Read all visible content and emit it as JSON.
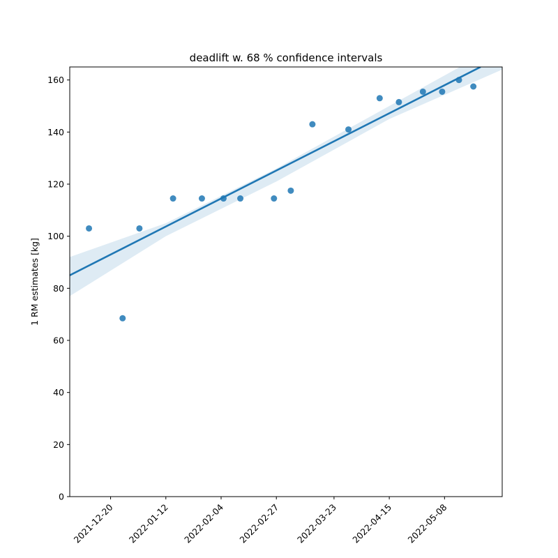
{
  "chart_data": {
    "type": "scatter",
    "title": "deadlift w. 68 % confidence intervals",
    "xlabel": "",
    "ylabel": "1 RM estimates [kg]",
    "x_type": "date",
    "xlim": [
      "2021-12-03",
      "2022-06-01"
    ],
    "ylim": [
      0,
      165
    ],
    "x_ticks": [
      "2021-12-20",
      "2022-01-12",
      "2022-02-04",
      "2022-02-27",
      "2022-03-23",
      "2022-04-15",
      "2022-05-08"
    ],
    "y_ticks": [
      0,
      20,
      40,
      60,
      80,
      100,
      120,
      140,
      160
    ],
    "grid": false,
    "color": "#1f77b4",
    "points": [
      {
        "x": "2021-12-11",
        "y": 103
      },
      {
        "x": "2021-12-25",
        "y": 68.5
      },
      {
        "x": "2022-01-01",
        "y": 103
      },
      {
        "x": "2022-01-15",
        "y": 114.5
      },
      {
        "x": "2022-01-27",
        "y": 114.5
      },
      {
        "x": "2022-02-05",
        "y": 114.5
      },
      {
        "x": "2022-02-12",
        "y": 114.5
      },
      {
        "x": "2022-02-26",
        "y": 114.5
      },
      {
        "x": "2022-03-05",
        "y": 117.5
      },
      {
        "x": "2022-03-14",
        "y": 143
      },
      {
        "x": "2022-03-29",
        "y": 141
      },
      {
        "x": "2022-04-11",
        "y": 153
      },
      {
        "x": "2022-04-19",
        "y": 151.5
      },
      {
        "x": "2022-04-29",
        "y": 155.5
      },
      {
        "x": "2022-05-07",
        "y": 155.5
      },
      {
        "x": "2022-05-14",
        "y": 160
      },
      {
        "x": "2022-05-20",
        "y": 157.5
      }
    ],
    "regression": {
      "start": {
        "x": "2021-12-03",
        "y": 85
      },
      "end": {
        "x": "2022-05-23",
        "y": 165
      }
    },
    "confidence_band": [
      {
        "x": "2021-12-03",
        "lower": 77,
        "upper": 92
      },
      {
        "x": "2022-01-12",
        "lower": 100,
        "upper": 105
      },
      {
        "x": "2022-02-27",
        "lower": 121,
        "upper": 126
      },
      {
        "x": "2022-04-15",
        "lower": 145,
        "upper": 150
      },
      {
        "x": "2022-06-01",
        "lower": 164,
        "upper": 174
      }
    ]
  }
}
